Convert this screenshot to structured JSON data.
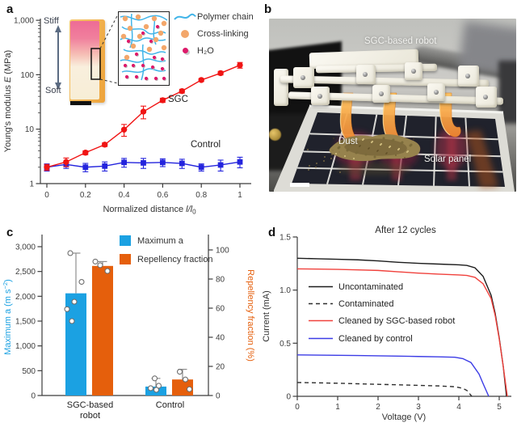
{
  "panels": {
    "a": {
      "label": "a",
      "inset": {
        "stiff": "Stiff",
        "soft": "Soft",
        "legend": [
          {
            "label": "Polymer chain",
            "color": "#41b4e8",
            "icon": "wave-line"
          },
          {
            "label": "Cross-linking",
            "color": "#f3a76b",
            "icon": "dot"
          },
          {
            "label": "H₂O",
            "color": "#dd1a6a",
            "icon": "dot-shadow"
          }
        ]
      }
    },
    "b": {
      "label": "b",
      "photo": {
        "robot_label": "SGC-based robot",
        "dust_label": "Dust",
        "panel_label": "Solar panel"
      }
    },
    "c": {
      "label": "c"
    },
    "d": {
      "label": "d"
    }
  },
  "chart_data": [
    {
      "panel": "a",
      "type": "line",
      "xscale": "linear",
      "yscale": "log",
      "xlabel": "Normalized distance l/l₀",
      "xlabel_pre": "Normalized distance ",
      "xlabel_var": "l/l",
      "xlabel_sub": "0",
      "ylabel": "Young's modulus E (MPa)",
      "ylabel_pre": "Young's modulus ",
      "ylabel_var": "E",
      "ylabel_post": " (MPa)",
      "xlim": [
        0,
        1.05
      ],
      "ylim": [
        1,
        1000
      ],
      "xticks": [
        0,
        0.2,
        0.4,
        0.6,
        0.8,
        1
      ],
      "xtick_labels": [
        "0",
        "0.2",
        "0.4",
        "0.6",
        "0.8",
        "1"
      ],
      "ytick_values": [
        1,
        10,
        100,
        1000
      ],
      "ytick_labels": [
        "1",
        "10",
        "100",
        "1,000"
      ],
      "x": [
        0,
        0.1,
        0.2,
        0.3,
        0.4,
        0.5,
        0.6,
        0.7,
        0.8,
        0.9,
        1.0
      ],
      "series": [
        {
          "name": "SGC",
          "color": "#f01414",
          "marker": "circle",
          "values": [
            2.0,
            2.5,
            3.7,
            5.2,
            9.8,
            21,
            34,
            50,
            80,
            107,
            150
          ],
          "err": [
            0.25,
            0.45,
            0.3,
            0.4,
            2.4,
            5.5,
            3,
            4,
            5,
            8,
            18
          ]
        },
        {
          "name": "Control",
          "color": "#2424dd",
          "marker": "square",
          "values": [
            2.0,
            2.25,
            2.0,
            2.1,
            2.45,
            2.4,
            2.45,
            2.35,
            2.0,
            2.2,
            2.5
          ],
          "err": [
            0.3,
            0.35,
            0.35,
            0.4,
            0.45,
            0.5,
            0.4,
            0.45,
            0.3,
            0.5,
            0.55
          ]
        }
      ]
    },
    {
      "panel": "c",
      "type": "bar",
      "categories": [
        "SGC-based robot",
        "Control"
      ],
      "category_lines": [
        [
          "SGC-based",
          "robot"
        ],
        [
          "Control"
        ]
      ],
      "left_axis": {
        "label": "Maximum a (m s⁻²)",
        "label_main": "Maximum a (m s",
        "label_sup": "−2",
        "label_end": ")",
        "color": "#1ba1e2",
        "ticks": [
          0,
          500,
          1000,
          1500,
          2000,
          2500,
          3000
        ],
        "tick_labels": [
          "0",
          "500",
          "1,000",
          "1,500",
          "2,000",
          "2,500",
          "3,000"
        ]
      },
      "right_axis": {
        "label": "Repellency fraction (%)",
        "color": "#e55f0c",
        "ticks": [
          0,
          20,
          40,
          60,
          80,
          100
        ],
        "tick_labels": [
          "0",
          "20",
          "40",
          "60",
          "80",
          "100"
        ]
      },
      "series": [
        {
          "name": "Maximum a",
          "axis": "left",
          "color": "#1ba1e2",
          "values": [
            2060,
            180
          ],
          "err_up": [
            810,
            165
          ],
          "points": [
            [
              2870,
              2290,
              1890,
              1740,
              1500
            ],
            [
              345,
              196,
              147,
              114
            ]
          ]
        },
        {
          "name": "Repellency fraction",
          "axis": "right",
          "color": "#e55f0c",
          "values": [
            89,
            11
          ],
          "err_up": [
            3,
            7
          ],
          "points": [
            [
              92,
              89.5,
              85.5
            ],
            [
              16.3,
              11,
              4.3
            ]
          ]
        }
      ]
    },
    {
      "panel": "d",
      "type": "line",
      "title": "After 12 cycles",
      "xlabel": "Voltage (V)",
      "ylabel": "Current (mA)",
      "xlim": [
        0,
        5.3
      ],
      "ylim": [
        0,
        1.5
      ],
      "xticks": [
        0,
        1,
        2,
        3,
        4,
        5
      ],
      "xtick_labels": [
        "0",
        "1",
        "2",
        "3",
        "4",
        "5"
      ],
      "ytick_values": [
        0,
        0.5,
        1.0,
        1.5
      ],
      "ytick_labels": [
        "0",
        "0.5",
        "1.0",
        "1.5"
      ],
      "series": [
        {
          "name": "Uncontaminated",
          "color": "#1c1c1c",
          "dash": false,
          "points": [
            [
              0,
              1.3
            ],
            [
              0.5,
              1.295
            ],
            [
              1,
              1.29
            ],
            [
              1.5,
              1.285
            ],
            [
              2,
              1.275
            ],
            [
              2.5,
              1.262
            ],
            [
              3,
              1.252
            ],
            [
              3.5,
              1.245
            ],
            [
              4,
              1.238
            ],
            [
              4.2,
              1.232
            ],
            [
              4.4,
              1.21
            ],
            [
              4.6,
              1.13
            ],
            [
              4.8,
              0.95
            ],
            [
              4.9,
              0.78
            ],
            [
              5.0,
              0.55
            ],
            [
              5.1,
              0.28
            ],
            [
              5.18,
              0
            ]
          ]
        },
        {
          "name": "Contaminated",
          "color": "#2e2e2e",
          "dash": true,
          "points": [
            [
              0,
              0.13
            ],
            [
              0.5,
              0.127
            ],
            [
              1,
              0.123
            ],
            [
              1.5,
              0.118
            ],
            [
              2,
              0.113
            ],
            [
              2.5,
              0.108
            ],
            [
              3,
              0.103
            ],
            [
              3.5,
              0.098
            ],
            [
              3.9,
              0.09
            ],
            [
              4.1,
              0.075
            ],
            [
              4.2,
              0.055
            ],
            [
              4.32,
              0
            ]
          ]
        },
        {
          "name": "Cleaned by SGC-based robot",
          "color": "#f0413c",
          "dash": false,
          "points": [
            [
              0,
              1.2
            ],
            [
              0.5,
              1.198
            ],
            [
              1,
              1.195
            ],
            [
              1.5,
              1.19
            ],
            [
              2,
              1.185
            ],
            [
              2.5,
              1.172
            ],
            [
              3,
              1.16
            ],
            [
              3.5,
              1.15
            ],
            [
              4,
              1.143
            ],
            [
              4.2,
              1.138
            ],
            [
              4.4,
              1.12
            ],
            [
              4.6,
              1.06
            ],
            [
              4.8,
              0.92
            ],
            [
              4.9,
              0.76
            ],
            [
              5.0,
              0.54
            ],
            [
              5.1,
              0.28
            ],
            [
              5.2,
              0
            ]
          ]
        },
        {
          "name": "Cleaned by control",
          "color": "#3c3ce6",
          "dash": false,
          "points": [
            [
              0,
              0.39
            ],
            [
              0.5,
              0.388
            ],
            [
              1,
              0.386
            ],
            [
              1.5,
              0.384
            ],
            [
              2,
              0.381
            ],
            [
              2.5,
              0.378
            ],
            [
              3,
              0.375
            ],
            [
              3.5,
              0.372
            ],
            [
              3.9,
              0.368
            ],
            [
              4.1,
              0.355
            ],
            [
              4.3,
              0.318
            ],
            [
              4.5,
              0.21
            ],
            [
              4.6,
              0.12
            ],
            [
              4.74,
              0
            ]
          ]
        }
      ]
    }
  ]
}
